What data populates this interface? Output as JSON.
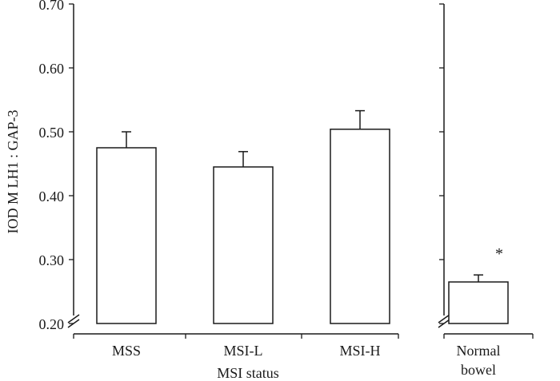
{
  "chart_data": {
    "type": "bar",
    "ylabel": "IOD M LH1 : GAP-3",
    "xlabel": "MSI status",
    "ylim": [
      0.2,
      0.7
    ],
    "yticks": [
      "0.20",
      "0.30",
      "0.40",
      "0.50",
      "0.60",
      "0.70"
    ],
    "ytick_values": [
      0.2,
      0.3,
      0.4,
      0.5,
      0.6,
      0.7
    ],
    "axis_break": true,
    "grid": false,
    "panels": [
      {
        "categories": [
          "MSS",
          "MSI-L",
          "MSI-H"
        ],
        "values": [
          0.475,
          0.445,
          0.504
        ],
        "error_upper": [
          0.5,
          0.469,
          0.533
        ],
        "annotations": [
          "",
          "",
          ""
        ]
      },
      {
        "categories": [
          "Normal bowel"
        ],
        "category_lines": [
          [
            "Normal",
            "bowel"
          ]
        ],
        "values": [
          0.265
        ],
        "error_upper": [
          0.276
        ],
        "annotations": [
          "*"
        ]
      }
    ],
    "bar_fill": "#ffffff",
    "stroke_color": "#1a1a1a"
  }
}
